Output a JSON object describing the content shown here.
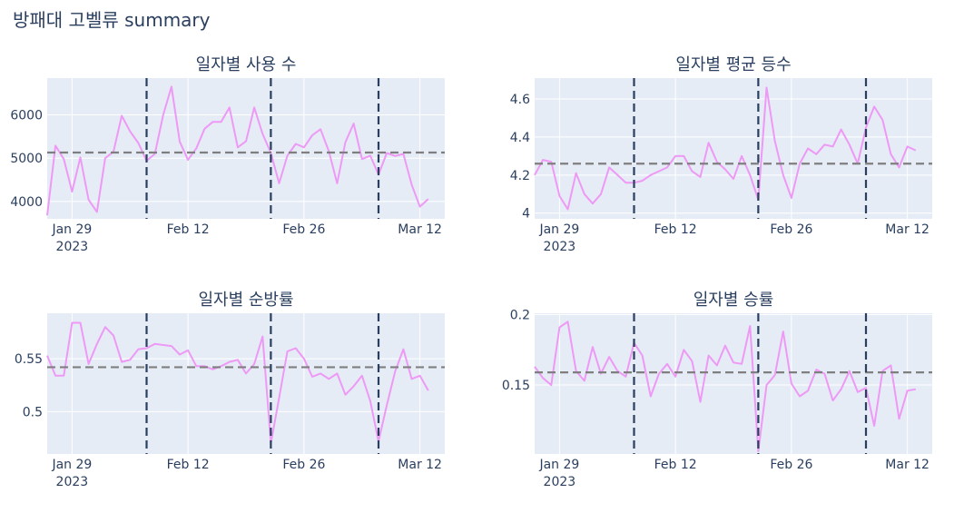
{
  "title": "방패대 고벨류 summary",
  "colors": {
    "series": "#ee99f5",
    "mean": "#7f7f7f",
    "vline": "#2a3f5f",
    "plot_bg": "#e5ecf6",
    "grid": "#ffffff"
  },
  "x_ticks": [
    {
      "date": "2023-01-29",
      "label": "Jan 29",
      "sub": "2023"
    },
    {
      "date": "2023-02-12",
      "label": "Feb 12",
      "sub": ""
    },
    {
      "date": "2023-02-26",
      "label": "Feb 26",
      "sub": ""
    },
    {
      "date": "2023-03-12",
      "label": "Mar 12",
      "sub": ""
    }
  ],
  "chart_data": [
    {
      "type": "line",
      "title": "일자별 사용 수",
      "x_start": "2023-01-26",
      "x_end": "2023-03-15",
      "ylim": [
        3600,
        6850
      ],
      "y_ticks": [
        {
          "v": 4000,
          "label": "4000"
        },
        {
          "v": 5000,
          "label": "5000"
        },
        {
          "v": 6000,
          "label": "6000"
        }
      ],
      "mean": 5130,
      "vlines": [
        "2023-02-07",
        "2023-02-22",
        "2023-03-07"
      ],
      "values": [
        3680,
        5290,
        4980,
        4230,
        5020,
        4040,
        3760,
        5000,
        5150,
        5980,
        5620,
        5350,
        4940,
        5100,
        6000,
        6650,
        5380,
        4960,
        5230,
        5680,
        5840,
        5840,
        6170,
        5250,
        5390,
        6170,
        5560,
        5120,
        4420,
        5060,
        5330,
        5250,
        5530,
        5670,
        5160,
        4420,
        5370,
        5800,
        4980,
        5060,
        4620,
        5120,
        5050,
        5100,
        4390,
        3880,
        4060
      ]
    },
    {
      "type": "line",
      "title": "일자별 평균 등수",
      "x_start": "2023-01-26",
      "x_end": "2023-03-15",
      "ylim": [
        3.97,
        4.71
      ],
      "y_ticks": [
        {
          "v": 4.0,
          "label": "4"
        },
        {
          "v": 4.2,
          "label": "4.2"
        },
        {
          "v": 4.4,
          "label": "4.4"
        },
        {
          "v": 4.6,
          "label": "4.6"
        }
      ],
      "mean": 4.26,
      "vlines": [
        "2023-02-07",
        "2023-02-22",
        "2023-03-07"
      ],
      "values": [
        4.2,
        4.28,
        4.27,
        4.09,
        4.02,
        4.21,
        4.1,
        4.05,
        4.1,
        4.24,
        4.2,
        4.16,
        4.16,
        4.17,
        4.2,
        4.22,
        4.24,
        4.3,
        4.3,
        4.22,
        4.19,
        4.37,
        4.27,
        4.23,
        4.18,
        4.3,
        4.2,
        4.07,
        4.66,
        4.38,
        4.2,
        4.08,
        4.26,
        4.34,
        4.31,
        4.36,
        4.35,
        4.44,
        4.36,
        4.26,
        4.45,
        4.56,
        4.49,
        4.31,
        4.24,
        4.35,
        4.33
      ]
    },
    {
      "type": "line",
      "title": "일자별 순방률",
      "x_start": "2023-01-26",
      "x_end": "2023-03-15",
      "ylim": [
        0.46,
        0.593
      ],
      "y_ticks": [
        {
          "v": 0.5,
          "label": "0.5"
        },
        {
          "v": 0.55,
          "label": "0.55"
        }
      ],
      "mean": 0.542,
      "vlines": [
        "2023-02-07",
        "2023-02-22",
        "2023-03-07"
      ],
      "values": [
        0.553,
        0.534,
        0.534,
        0.584,
        0.584,
        0.545,
        0.564,
        0.58,
        0.572,
        0.547,
        0.549,
        0.559,
        0.56,
        0.564,
        0.563,
        0.562,
        0.554,
        0.558,
        0.543,
        0.543,
        0.54,
        0.543,
        0.547,
        0.549,
        0.536,
        0.545,
        0.571,
        0.47,
        0.513,
        0.557,
        0.56,
        0.55,
        0.533,
        0.536,
        0.531,
        0.536,
        0.516,
        0.524,
        0.534,
        0.51,
        0.472,
        0.506,
        0.538,
        0.559,
        0.531,
        0.534,
        0.52
      ]
    },
    {
      "type": "line",
      "title": "일자별 승률",
      "x_start": "2023-01-26",
      "x_end": "2023-03-15",
      "ylim": [
        0.101,
        0.201
      ],
      "y_ticks": [
        {
          "v": 0.15,
          "label": "0.15"
        },
        {
          "v": 0.2,
          "label": "0.2"
        }
      ],
      "mean": 0.159,
      "vlines": [
        "2023-02-07",
        "2023-02-22",
        "2023-03-07"
      ],
      "values": [
        0.163,
        0.155,
        0.15,
        0.191,
        0.195,
        0.16,
        0.153,
        0.177,
        0.158,
        0.17,
        0.16,
        0.156,
        0.18,
        0.171,
        0.142,
        0.158,
        0.165,
        0.156,
        0.175,
        0.167,
        0.138,
        0.171,
        0.164,
        0.178,
        0.166,
        0.165,
        0.192,
        0.103,
        0.15,
        0.157,
        0.188,
        0.151,
        0.142,
        0.146,
        0.161,
        0.158,
        0.139,
        0.147,
        0.16,
        0.145,
        0.148,
        0.121,
        0.16,
        0.164,
        0.126,
        0.146,
        0.147
      ]
    }
  ]
}
